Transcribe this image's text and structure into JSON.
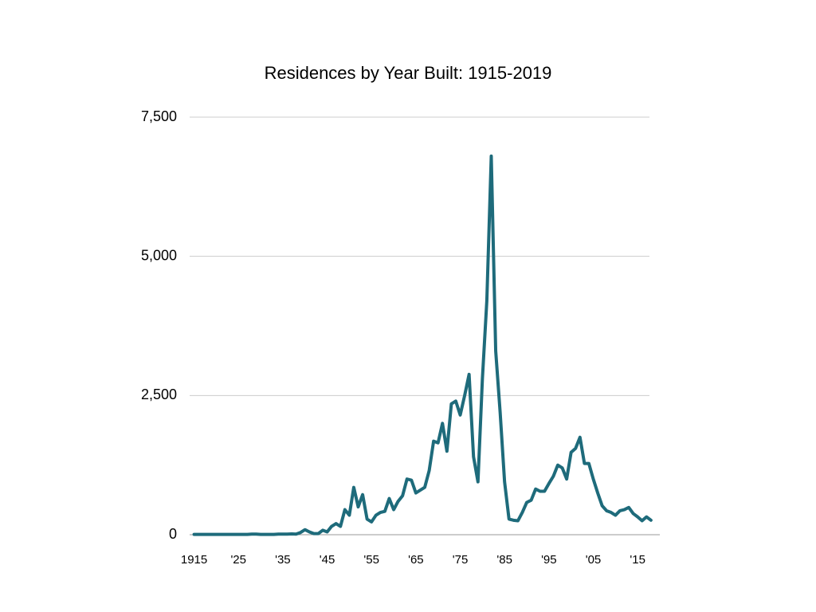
{
  "chart_data": {
    "type": "line",
    "title": "Residences by Year Built: 1915-2019",
    "x": [
      1915,
      1916,
      1917,
      1918,
      1919,
      1920,
      1921,
      1922,
      1923,
      1924,
      1925,
      1926,
      1927,
      1928,
      1929,
      1930,
      1931,
      1932,
      1933,
      1934,
      1935,
      1936,
      1937,
      1938,
      1939,
      1940,
      1941,
      1942,
      1943,
      1944,
      1945,
      1946,
      1947,
      1948,
      1949,
      1950,
      1951,
      1952,
      1953,
      1954,
      1955,
      1956,
      1957,
      1958,
      1959,
      1960,
      1961,
      1962,
      1963,
      1964,
      1965,
      1966,
      1967,
      1968,
      1969,
      1970,
      1971,
      1972,
      1973,
      1974,
      1975,
      1976,
      1977,
      1978,
      1979,
      1980,
      1981,
      1982,
      1983,
      1984,
      1985,
      1986,
      1987,
      1988,
      1989,
      1990,
      1991,
      1992,
      1993,
      1994,
      1995,
      1996,
      1997,
      1998,
      1999,
      2000,
      2001,
      2002,
      2003,
      2004,
      2005,
      2006,
      2007,
      2008,
      2009,
      2010,
      2011,
      2012,
      2013,
      2014,
      2015,
      2016,
      2017,
      2018
    ],
    "series": [
      {
        "name": "Residences",
        "color": "#1e6b7b",
        "values": [
          5,
          5,
          5,
          5,
          5,
          5,
          5,
          5,
          5,
          5,
          5,
          5,
          5,
          10,
          10,
          5,
          5,
          5,
          5,
          10,
          10,
          10,
          15,
          10,
          40,
          90,
          50,
          20,
          20,
          80,
          50,
          150,
          200,
          150,
          450,
          350,
          850,
          500,
          720,
          280,
          230,
          350,
          400,
          420,
          650,
          450,
          600,
          700,
          1000,
          980,
          750,
          800,
          850,
          1150,
          1680,
          1650,
          2000,
          1500,
          2350,
          2400,
          2150,
          2500,
          2880,
          1400,
          950,
          2800,
          4200,
          6800,
          3300,
          2200,
          950,
          280,
          260,
          250,
          400,
          580,
          620,
          820,
          780,
          780,
          920,
          1050,
          1250,
          1200,
          1000,
          1480,
          1550,
          1750,
          1280,
          1280,
          1000,
          750,
          520,
          430,
          400,
          350,
          430,
          450,
          490,
          380,
          320,
          250,
          320,
          260
        ]
      }
    ],
    "xlim": [
      1914,
      2020
    ],
    "xticks": [
      1915,
      {
        "value": 1925,
        "label": "'25"
      },
      {
        "value": 1935,
        "label": "'35"
      },
      {
        "value": 1945,
        "label": "'45"
      },
      {
        "value": 1955,
        "label": "'55"
      },
      {
        "value": 1965,
        "label": "'65"
      },
      {
        "value": 1975,
        "label": "'75"
      },
      {
        "value": 1985,
        "label": "'85"
      },
      {
        "value": 1995,
        "label": "'95"
      },
      {
        "value": 2005,
        "label": "'05"
      },
      {
        "value": 2015,
        "label": "'15"
      }
    ],
    "ylim": [
      0,
      7500
    ],
    "yticks": [
      0,
      {
        "value": 2500,
        "label": "2,500"
      },
      {
        "value": 5000,
        "label": "5,000"
      },
      {
        "value": 7500,
        "label": "7,500"
      }
    ],
    "grid": true
  }
}
